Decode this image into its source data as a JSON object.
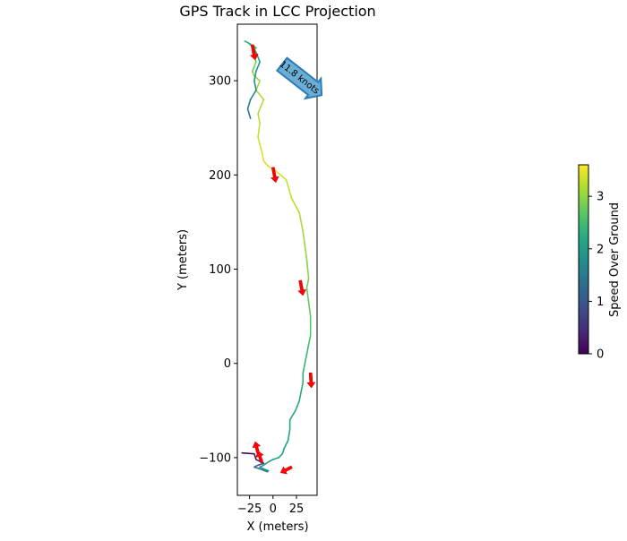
{
  "chart_data": {
    "type": "line",
    "title": "GPS Track in LCC Projection",
    "xlabel": "X (meters)",
    "ylabel": "Y (meters)",
    "xlim": [
      -38,
      47
    ],
    "ylim": [
      -140,
      360
    ],
    "xticks": [
      -25,
      0,
      25
    ],
    "yticks": [
      -100,
      0,
      100,
      200,
      300
    ],
    "grid": false,
    "colorbar": {
      "label": "Speed Over Ground",
      "range": [
        0,
        3.6
      ],
      "ticks": [
        0,
        1,
        2,
        3
      ],
      "colormap": "viridis"
    },
    "annotation": {
      "text": "11.8 knots",
      "fill_color": "#6BAED6",
      "edge_color": "#2B7BB9"
    },
    "series": [
      {
        "x": [
          -33,
          -20,
          -18,
          -10,
          -16,
          -20,
          -14,
          -6,
          -5,
          -10,
          -14,
          -10,
          -4,
          0,
          6,
          10,
          12,
          16,
          18,
          18,
          24,
          28,
          30,
          32,
          32,
          34,
          36,
          38,
          40,
          40,
          36,
          38,
          36,
          32,
          28,
          20,
          14,
          8,
          2,
          -6,
          -10,
          -12,
          -16,
          -14,
          -16,
          -10,
          -18,
          -14,
          -20,
          -22,
          -18,
          -20,
          -22,
          -18,
          -26,
          -30,
          -26,
          -22,
          -18,
          -14,
          -18,
          -20,
          -18,
          -24,
          -27,
          -24
        ],
        "y": [
          -95,
          -96,
          -102,
          -106,
          -108,
          -110,
          -112,
          -115,
          -114,
          -112,
          -110,
          -108,
          -104,
          -102,
          -100,
          -96,
          -90,
          -82,
          -70,
          -60,
          -50,
          -40,
          -30,
          -20,
          -10,
          0,
          10,
          20,
          30,
          50,
          80,
          90,
          110,
          140,
          160,
          175,
          195,
          200,
          205,
          210,
          215,
          225,
          240,
          255,
          265,
          280,
          290,
          300,
          305,
          310,
          320,
          325,
          330,
          335,
          340,
          342,
          340,
          336,
          330,
          320,
          310,
          300,
          290,
          280,
          270,
          260
        ],
        "speed": [
          0.1,
          0.1,
          0.3,
          0.5,
          1.0,
          1.3,
          1.5,
          1.6,
          1.7,
          1.8,
          1.9,
          1.9,
          2.0,
          2.0,
          2.0,
          2.1,
          2.1,
          2.1,
          2.1,
          2.2,
          2.2,
          2.2,
          2.2,
          2.3,
          2.3,
          2.4,
          2.4,
          2.5,
          2.6,
          2.7,
          2.8,
          2.9,
          3.0,
          3.1,
          3.2,
          3.3,
          3.3,
          3.4,
          3.4,
          3.4,
          3.4,
          3.4,
          3.3,
          3.3,
          3.2,
          3.2,
          3.1,
          3.1,
          3.0,
          2.9,
          2.8,
          2.7,
          2.6,
          2.5,
          2.4,
          2.4,
          2.3,
          2.2,
          2.1,
          2.0,
          1.9,
          1.8,
          1.7,
          1.6,
          1.5,
          1.4
        ]
      }
    ],
    "heading_arrows": [
      {
        "x": -22,
        "y": 338,
        "dx": 3,
        "dy": -16
      },
      {
        "x": 0,
        "y": 208,
        "dx": 3,
        "dy": -16
      },
      {
        "x": 29,
        "y": 88,
        "dx": 3,
        "dy": -16
      },
      {
        "x": 40,
        "y": -10,
        "dx": 1,
        "dy": -16
      },
      {
        "x": 20,
        "y": -110,
        "dx": -12,
        "dy": -6
      },
      {
        "x": -16,
        "y": -95,
        "dx": -3,
        "dy": 12
      },
      {
        "x": -12,
        "y": -105,
        "dx": -4,
        "dy": 12
      }
    ]
  }
}
